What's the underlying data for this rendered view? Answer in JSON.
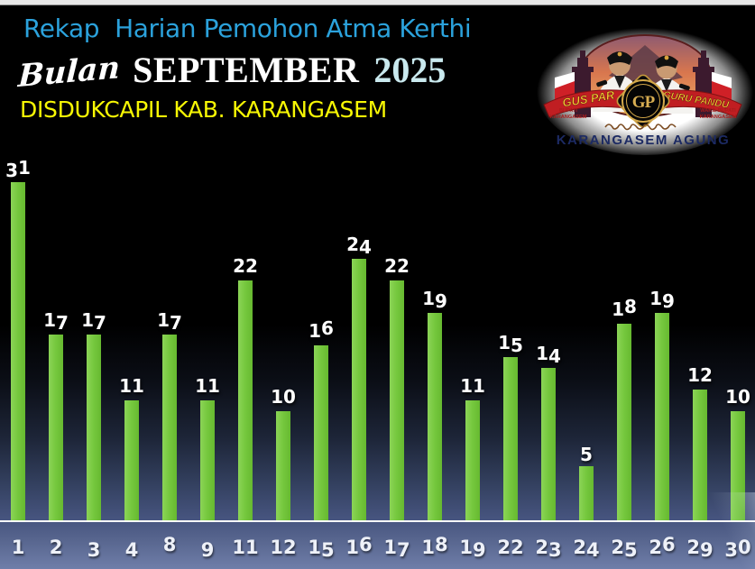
{
  "header": {
    "title": "Rekap  Harian Pemohon Atma Kerthi",
    "subtitle_script": "Bulan",
    "subtitle_month": "SEPTEMBER",
    "subtitle_year": "2025",
    "org": "DISDUKCAPIL KAB. KARANGASEM"
  },
  "logo": {
    "ribbon_left": "GUS PAR",
    "ribbon_right": "GURU PANDU",
    "monogram": "GP",
    "left_caption_line1": "BUPATI",
    "left_caption_line2": "KARANGASEM",
    "right_caption_line1": "WAKIL BUPATI",
    "right_caption_line2": "KARANGASEM",
    "bottom_text": "KARANGASEM AGUNG"
  },
  "chart_data": {
    "type": "bar",
    "title": "Rekap Harian Pemohon Atma Kerthi - Bulan September 2025",
    "categories": [
      "1",
      "2",
      "3",
      "4",
      "8",
      "9",
      "11",
      "12",
      "15",
      "16",
      "17",
      "18",
      "19",
      "22",
      "23",
      "24",
      "25",
      "26",
      "29",
      "30"
    ],
    "values": [
      31,
      17,
      17,
      11,
      17,
      11,
      22,
      10,
      16,
      24,
      22,
      19,
      11,
      15,
      14,
      5,
      18,
      19,
      12,
      10
    ],
    "xlabel": "",
    "ylabel": "",
    "ylim": [
      0,
      31
    ],
    "grid": false,
    "legend": false,
    "bar_color": "#76C83E",
    "value_label_color": "#FFFFFF",
    "axis_label_color": "#EEF1F8",
    "baseline_color": "#FBFBFB"
  },
  "colors": {
    "title_blue": "#2BA2DC",
    "year_pale_cyan": "#C9E9EE",
    "org_yellow": "#F7F704",
    "background_top": "#000000",
    "background_bottom": "#6F7EA9",
    "logo_bottom_text_navy": "#1C2A63",
    "ribbon_red": "#C01E22",
    "ribbon_gold_text": "#F5C832"
  }
}
